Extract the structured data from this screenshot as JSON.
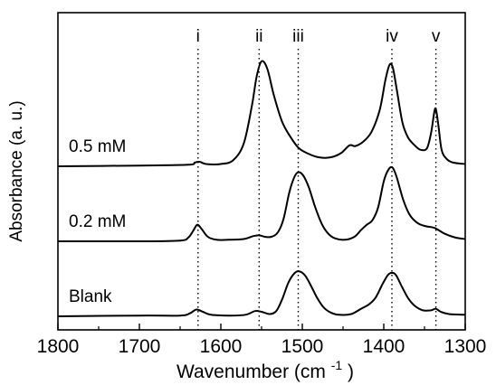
{
  "chart_data": {
    "type": "line",
    "title": "",
    "xlabel": "Wavenumber (cm",
    "xlabel_superscript": "-1",
    "xlabel_close": ")",
    "ylabel": "Absorbance (a. u.)",
    "x_reversed": true,
    "xlim": [
      1800,
      1300
    ],
    "x_ticks": [
      {
        "value": 1800,
        "label": "1800"
      },
      {
        "value": 1700,
        "label": "1700"
      },
      {
        "value": 1600,
        "label": "1600"
      },
      {
        "value": 1500,
        "label": "1500"
      },
      {
        "value": 1400,
        "label": "1400"
      },
      {
        "value": 1300,
        "label": "1300"
      }
    ],
    "y_ticks_shown": false,
    "grid": false,
    "legend": "none",
    "reference_lines": [
      {
        "label": "i",
        "x": 1628
      },
      {
        "label": "ii",
        "x": 1553
      },
      {
        "label": "iii",
        "x": 1505
      },
      {
        "label": "iv",
        "x": 1390
      },
      {
        "label": "v",
        "x": 1336
      }
    ],
    "series": [
      {
        "name": "0.5 mM",
        "color": "#000000",
        "baseline": 2.0,
        "points": [
          [
            1800,
            2.0
          ],
          [
            1700,
            2.01
          ],
          [
            1640,
            2.02
          ],
          [
            1632,
            2.05
          ],
          [
            1626,
            2.06
          ],
          [
            1618,
            2.03
          ],
          [
            1600,
            2.03
          ],
          [
            1585,
            2.08
          ],
          [
            1572,
            2.3
          ],
          [
            1562,
            2.8
          ],
          [
            1556,
            3.2
          ],
          [
            1550,
            3.4
          ],
          [
            1543,
            3.3
          ],
          [
            1535,
            2.95
          ],
          [
            1525,
            2.6
          ],
          [
            1515,
            2.4
          ],
          [
            1505,
            2.25
          ],
          [
            1495,
            2.18
          ],
          [
            1480,
            2.12
          ],
          [
            1465,
            2.12
          ],
          [
            1452,
            2.18
          ],
          [
            1442,
            2.28
          ],
          [
            1435,
            2.27
          ],
          [
            1425,
            2.33
          ],
          [
            1415,
            2.46
          ],
          [
            1405,
            2.75
          ],
          [
            1398,
            3.15
          ],
          [
            1393,
            3.35
          ],
          [
            1389,
            3.32
          ],
          [
            1384,
            3.02
          ],
          [
            1377,
            2.58
          ],
          [
            1370,
            2.38
          ],
          [
            1362,
            2.28
          ],
          [
            1355,
            2.22
          ],
          [
            1347,
            2.24
          ],
          [
            1342,
            2.44
          ],
          [
            1338,
            2.72
          ],
          [
            1336,
            2.76
          ],
          [
            1333,
            2.55
          ],
          [
            1329,
            2.22
          ],
          [
            1323,
            2.1
          ],
          [
            1315,
            2.05
          ],
          [
            1300,
            2.03
          ]
        ]
      },
      {
        "name": "0.2 mM",
        "color": "#000000",
        "baseline": 1.0,
        "points": [
          [
            1800,
            1.0
          ],
          [
            1700,
            1.0
          ],
          [
            1650,
            1.01
          ],
          [
            1640,
            1.05
          ],
          [
            1634,
            1.14
          ],
          [
            1629,
            1.22
          ],
          [
            1624,
            1.17
          ],
          [
            1616,
            1.06
          ],
          [
            1605,
            1.02
          ],
          [
            1590,
            1.02
          ],
          [
            1572,
            1.03
          ],
          [
            1560,
            1.07
          ],
          [
            1553,
            1.08
          ],
          [
            1546,
            1.06
          ],
          [
            1538,
            1.06
          ],
          [
            1530,
            1.12
          ],
          [
            1523,
            1.3
          ],
          [
            1516,
            1.65
          ],
          [
            1510,
            1.85
          ],
          [
            1505,
            1.92
          ],
          [
            1499,
            1.88
          ],
          [
            1492,
            1.72
          ],
          [
            1484,
            1.45
          ],
          [
            1476,
            1.23
          ],
          [
            1468,
            1.1
          ],
          [
            1460,
            1.04
          ],
          [
            1448,
            1.02
          ],
          [
            1436,
            1.06
          ],
          [
            1428,
            1.15
          ],
          [
            1421,
            1.22
          ],
          [
            1414,
            1.28
          ],
          [
            1407,
            1.45
          ],
          [
            1400,
            1.8
          ],
          [
            1394,
            1.96
          ],
          [
            1389,
            1.98
          ],
          [
            1384,
            1.85
          ],
          [
            1376,
            1.55
          ],
          [
            1368,
            1.35
          ],
          [
            1358,
            1.24
          ],
          [
            1348,
            1.2
          ],
          [
            1338,
            1.18
          ],
          [
            1325,
            1.1
          ],
          [
            1312,
            1.05
          ],
          [
            1300,
            1.03
          ]
        ]
      },
      {
        "name": "Blank",
        "color": "#000000",
        "baseline": 0.0,
        "points": [
          [
            1800,
            0.0
          ],
          [
            1700,
            0.01
          ],
          [
            1650,
            0.01
          ],
          [
            1638,
            0.04
          ],
          [
            1630,
            0.09
          ],
          [
            1622,
            0.06
          ],
          [
            1612,
            0.02
          ],
          [
            1590,
            0.01
          ],
          [
            1570,
            0.02
          ],
          [
            1558,
            0.07
          ],
          [
            1550,
            0.06
          ],
          [
            1540,
            0.03
          ],
          [
            1532,
            0.07
          ],
          [
            1525,
            0.22
          ],
          [
            1517,
            0.45
          ],
          [
            1510,
            0.57
          ],
          [
            1504,
            0.6
          ],
          [
            1497,
            0.55
          ],
          [
            1490,
            0.42
          ],
          [
            1482,
            0.25
          ],
          [
            1474,
            0.12
          ],
          [
            1465,
            0.05
          ],
          [
            1455,
            0.02
          ],
          [
            1440,
            0.03
          ],
          [
            1428,
            0.1
          ],
          [
            1418,
            0.16
          ],
          [
            1410,
            0.25
          ],
          [
            1402,
            0.42
          ],
          [
            1395,
            0.55
          ],
          [
            1390,
            0.58
          ],
          [
            1385,
            0.55
          ],
          [
            1378,
            0.4
          ],
          [
            1370,
            0.24
          ],
          [
            1362,
            0.14
          ],
          [
            1352,
            0.08
          ],
          [
            1342,
            0.08
          ],
          [
            1336,
            0.1
          ],
          [
            1330,
            0.06
          ],
          [
            1320,
            0.03
          ],
          [
            1300,
            0.02
          ]
        ]
      }
    ]
  }
}
